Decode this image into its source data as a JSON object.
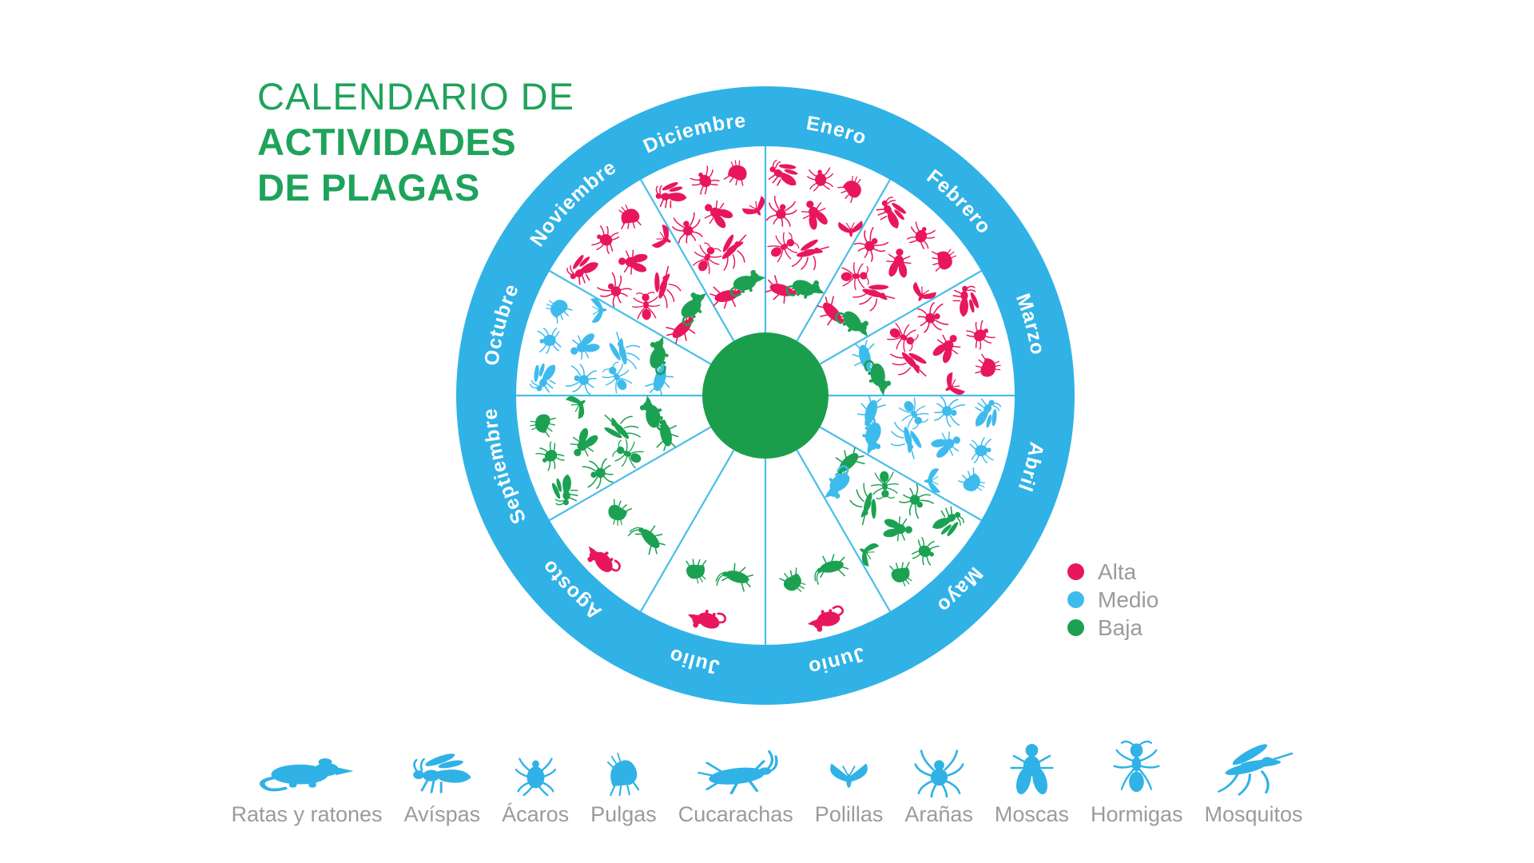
{
  "title": {
    "line1": "CALENDARIO DE",
    "line2": "ACTIVIDADES",
    "line3": "DE PLAGAS"
  },
  "colors": {
    "ring_blue": "#30B2E6",
    "divider_blue": "#49BEEA",
    "alta": "#E8175D",
    "medio": "#3EBBED",
    "baja": "#1CA153",
    "center_green": "#1B9E4C",
    "title_green": "#1EA35A",
    "label_gray": "#9B9B9B",
    "month_text": "#FFFFFF"
  },
  "legend": {
    "items": [
      {
        "label": "Alta",
        "level": "alta",
        "color": "#E8175D"
      },
      {
        "label": "Medio",
        "level": "medio",
        "color": "#3EBBED"
      },
      {
        "label": "Baja",
        "level": "baja",
        "color": "#1CA153"
      }
    ]
  },
  "pest_types": [
    {
      "id": "rat",
      "label": "Ratas y ratones"
    },
    {
      "id": "wasp",
      "label": "Avíspas"
    },
    {
      "id": "tick",
      "label": "Ácaros"
    },
    {
      "id": "flea",
      "label": "Pulgas"
    },
    {
      "id": "cockroach",
      "label": "Cucarachas"
    },
    {
      "id": "moth",
      "label": "Polillas"
    },
    {
      "id": "spider",
      "label": "Arañas"
    },
    {
      "id": "fly",
      "label": "Moscas"
    },
    {
      "id": "ant",
      "label": "Hormigas"
    },
    {
      "id": "mosquito",
      "label": "Mosquitos"
    }
  ],
  "wheel": {
    "months": [
      {
        "name": "Enero",
        "pests": [
          {
            "t": "wasp",
            "l": "alta"
          },
          {
            "t": "tick",
            "l": "alta"
          },
          {
            "t": "flea",
            "l": "alta"
          },
          {
            "t": "moth",
            "l": "alta"
          },
          {
            "t": "spider",
            "l": "alta"
          },
          {
            "t": "fly",
            "l": "alta"
          },
          {
            "t": "ant",
            "l": "alta"
          },
          {
            "t": "mosquito",
            "l": "alta"
          },
          {
            "t": "cockroach",
            "l": "alta"
          },
          {
            "t": "rat",
            "l": "baja"
          }
        ]
      },
      {
        "name": "Febrero",
        "pests": [
          {
            "t": "wasp",
            "l": "alta"
          },
          {
            "t": "tick",
            "l": "alta"
          },
          {
            "t": "flea",
            "l": "alta"
          },
          {
            "t": "moth",
            "l": "alta"
          },
          {
            "t": "spider",
            "l": "alta"
          },
          {
            "t": "fly",
            "l": "alta"
          },
          {
            "t": "ant",
            "l": "alta"
          },
          {
            "t": "mosquito",
            "l": "alta"
          },
          {
            "t": "cockroach",
            "l": "alta"
          },
          {
            "t": "rat",
            "l": "baja"
          }
        ]
      },
      {
        "name": "Marzo",
        "pests": [
          {
            "t": "wasp",
            "l": "alta"
          },
          {
            "t": "tick",
            "l": "alta"
          },
          {
            "t": "flea",
            "l": "alta"
          },
          {
            "t": "moth",
            "l": "alta"
          },
          {
            "t": "spider",
            "l": "alta"
          },
          {
            "t": "fly",
            "l": "alta"
          },
          {
            "t": "ant",
            "l": "alta"
          },
          {
            "t": "mosquito",
            "l": "alta"
          },
          {
            "t": "cockroach",
            "l": "medio"
          },
          {
            "t": "rat",
            "l": "baja"
          }
        ]
      },
      {
        "name": "Abril",
        "pests": [
          {
            "t": "wasp",
            "l": "medio"
          },
          {
            "t": "tick",
            "l": "medio"
          },
          {
            "t": "flea",
            "l": "medio"
          },
          {
            "t": "moth",
            "l": "medio"
          },
          {
            "t": "spider",
            "l": "medio"
          },
          {
            "t": "fly",
            "l": "medio"
          },
          {
            "t": "ant",
            "l": "medio"
          },
          {
            "t": "mosquito",
            "l": "medio"
          },
          {
            "t": "cockroach",
            "l": "medio"
          },
          {
            "t": "rat",
            "l": "medio"
          }
        ]
      },
      {
        "name": "Mayo",
        "pests": [
          {
            "t": "wasp",
            "l": "baja"
          },
          {
            "t": "tick",
            "l": "baja"
          },
          {
            "t": "flea",
            "l": "baja"
          },
          {
            "t": "moth",
            "l": "baja"
          },
          {
            "t": "spider",
            "l": "baja"
          },
          {
            "t": "fly",
            "l": "baja"
          },
          {
            "t": "ant",
            "l": "baja"
          },
          {
            "t": "mosquito",
            "l": "baja"
          },
          {
            "t": "cockroach",
            "l": "baja"
          },
          {
            "t": "rat",
            "l": "medio"
          }
        ]
      },
      {
        "name": "Junio",
        "pests": [
          {
            "t": "flea",
            "l": "baja"
          },
          {
            "t": "cockroach",
            "l": "baja"
          },
          {
            "t": "rat",
            "l": "alta"
          }
        ]
      },
      {
        "name": "Julio",
        "pests": [
          {
            "t": "flea",
            "l": "baja"
          },
          {
            "t": "cockroach",
            "l": "baja"
          },
          {
            "t": "rat",
            "l": "alta"
          }
        ]
      },
      {
        "name": "Agosto",
        "pests": [
          {
            "t": "flea",
            "l": "baja"
          },
          {
            "t": "cockroach",
            "l": "baja"
          },
          {
            "t": "rat",
            "l": "alta"
          }
        ]
      },
      {
        "name": "Septiembre",
        "pests": [
          {
            "t": "wasp",
            "l": "baja"
          },
          {
            "t": "tick",
            "l": "baja"
          },
          {
            "t": "flea",
            "l": "baja"
          },
          {
            "t": "moth",
            "l": "baja"
          },
          {
            "t": "spider",
            "l": "baja"
          },
          {
            "t": "fly",
            "l": "baja"
          },
          {
            "t": "ant",
            "l": "baja"
          },
          {
            "t": "mosquito",
            "l": "baja"
          },
          {
            "t": "cockroach",
            "l": "baja"
          },
          {
            "t": "rat",
            "l": "baja"
          }
        ]
      },
      {
        "name": "Octubre",
        "pests": [
          {
            "t": "wasp",
            "l": "medio"
          },
          {
            "t": "tick",
            "l": "medio"
          },
          {
            "t": "flea",
            "l": "medio"
          },
          {
            "t": "moth",
            "l": "medio"
          },
          {
            "t": "spider",
            "l": "medio"
          },
          {
            "t": "fly",
            "l": "medio"
          },
          {
            "t": "ant",
            "l": "medio"
          },
          {
            "t": "mosquito",
            "l": "medio"
          },
          {
            "t": "cockroach",
            "l": "medio"
          },
          {
            "t": "rat",
            "l": "baja"
          }
        ]
      },
      {
        "name": "Noviembre",
        "pests": [
          {
            "t": "wasp",
            "l": "alta"
          },
          {
            "t": "tick",
            "l": "alta"
          },
          {
            "t": "flea",
            "l": "alta"
          },
          {
            "t": "moth",
            "l": "alta"
          },
          {
            "t": "spider",
            "l": "alta"
          },
          {
            "t": "fly",
            "l": "alta"
          },
          {
            "t": "ant",
            "l": "alta"
          },
          {
            "t": "mosquito",
            "l": "alta"
          },
          {
            "t": "cockroach",
            "l": "alta"
          },
          {
            "t": "rat",
            "l": "baja"
          }
        ]
      },
      {
        "name": "Diciembre",
        "pests": [
          {
            "t": "wasp",
            "l": "alta"
          },
          {
            "t": "tick",
            "l": "alta"
          },
          {
            "t": "flea",
            "l": "alta"
          },
          {
            "t": "moth",
            "l": "alta"
          },
          {
            "t": "spider",
            "l": "alta"
          },
          {
            "t": "fly",
            "l": "alta"
          },
          {
            "t": "ant",
            "l": "alta"
          },
          {
            "t": "mosquito",
            "l": "alta"
          },
          {
            "t": "cockroach",
            "l": "alta"
          },
          {
            "t": "rat",
            "l": "baja"
          }
        ]
      }
    ]
  },
  "chart_data": {
    "type": "heatmap",
    "title": "Calendario de actividades de plagas",
    "x": [
      "Enero",
      "Febrero",
      "Marzo",
      "Abril",
      "Mayo",
      "Junio",
      "Julio",
      "Agosto",
      "Septiembre",
      "Octubre",
      "Noviembre",
      "Diciembre"
    ],
    "y": [
      "Ratas y ratones",
      "Avíspas",
      "Ácaros",
      "Pulgas",
      "Cucarachas",
      "Polillas",
      "Arañas",
      "Moscas",
      "Hormigas",
      "Mosquitos"
    ],
    "legend": [
      "Alta",
      "Medio",
      "Baja"
    ],
    "legend_position": "right",
    "values": [
      [
        "baja",
        "baja",
        "baja",
        "medio",
        "medio",
        "alta",
        "alta",
        "alta",
        "baja",
        "baja",
        "baja",
        "baja"
      ],
      [
        "alta",
        "alta",
        "alta",
        "medio",
        "baja",
        null,
        null,
        null,
        "baja",
        "medio",
        "alta",
        "alta"
      ],
      [
        "alta",
        "alta",
        "alta",
        "medio",
        "baja",
        null,
        null,
        null,
        "baja",
        "medio",
        "alta",
        "alta"
      ],
      [
        "alta",
        "alta",
        "alta",
        "medio",
        "baja",
        "baja",
        "baja",
        "baja",
        "baja",
        "medio",
        "alta",
        "alta"
      ],
      [
        "alta",
        "alta",
        "medio",
        "medio",
        "baja",
        "baja",
        "baja",
        "baja",
        "baja",
        "medio",
        "alta",
        "alta"
      ],
      [
        "alta",
        "alta",
        "alta",
        "medio",
        "baja",
        null,
        null,
        null,
        "baja",
        "medio",
        "alta",
        "alta"
      ],
      [
        "alta",
        "alta",
        "alta",
        "medio",
        "baja",
        null,
        null,
        null,
        "baja",
        "medio",
        "alta",
        "alta"
      ],
      [
        "alta",
        "alta",
        "alta",
        "medio",
        "baja",
        null,
        null,
        null,
        "baja",
        "medio",
        "alta",
        "alta"
      ],
      [
        "alta",
        "alta",
        "alta",
        "medio",
        "baja",
        null,
        null,
        null,
        "baja",
        "medio",
        "alta",
        "alta"
      ],
      [
        "alta",
        "alta",
        "alta",
        "medio",
        "baja",
        null,
        null,
        null,
        "baja",
        "medio",
        "alta",
        "alta"
      ]
    ]
  }
}
